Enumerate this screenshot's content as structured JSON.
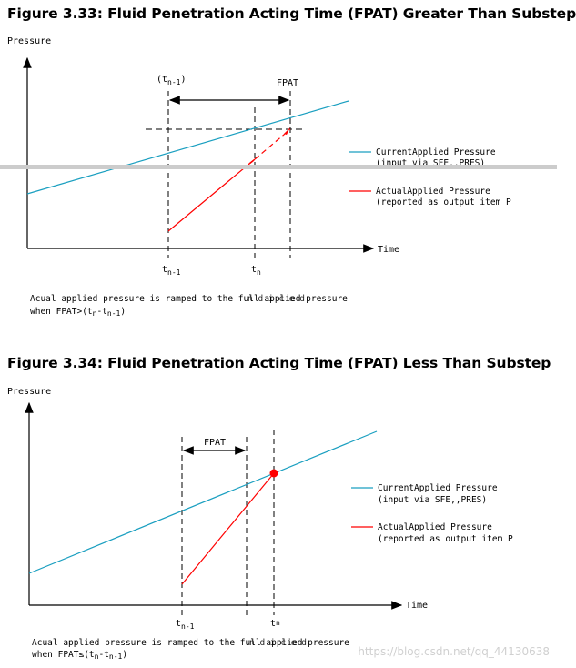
{
  "figure1": {
    "title": "Figure 3.33:  Fluid Penetration Acting Time (FPAT) Greater Than Substep",
    "y_axis_label": "Pressure",
    "x_axis_label": "Time",
    "top_tick_open": "(t",
    "top_tick_sub": "n-1",
    "top_tick_close": ")",
    "fpat_label": "FPAT",
    "bottom_tick1": "t",
    "bottom_tick1_sub": "n-1",
    "bottom_tick2": "t",
    "bottom_tick2_sub": "n",
    "legend": [
      {
        "line1": "CurrentApplied Pressure",
        "line2": "(input via SFE,,PRES)",
        "color": "#1a9fc0"
      },
      {
        "line1": "ActualApplied Pressure",
        "line2": "(reported as output item P",
        "color": "#ff0000"
      }
    ],
    "note_line1": "Acual applied pressure is ramped to the full applied pressure",
    "note_overlap": "n d i c e d",
    "note_line2_prefix": "when FPAT>(t",
    "note_line2_sub1": "n",
    "note_line2_mid": "-t",
    "note_line2_sub2": "n-1",
    "note_line2_suffix": ")"
  },
  "figure2": {
    "title": "Figure 3.34:  Fluid Penetration Acting Time (FPAT) Less Than Substep",
    "y_axis_label": "Pressure",
    "x_axis_label": "Time",
    "fpat_label": "FPAT",
    "bottom_tick1": "t",
    "bottom_tick1_sub": "n-1",
    "bottom_tick2": "t",
    "bottom_tick2_sub": "n",
    "legend": [
      {
        "line1": "CurrentApplied Pressure",
        "line2": "(input via SFE,,PRES)",
        "color": "#1a9fc0"
      },
      {
        "line1": "ActualApplied Pressure",
        "line2": "(reported as output item P",
        "color": "#ff0000"
      }
    ],
    "note_line1": "Acual applied pressure is ramped to the full applied pressure",
    "note_overlap": "n d i c e d",
    "note_line2_prefix": "when FPAT≤(t",
    "note_line2_sub1": "n",
    "note_line2_mid": "-t",
    "note_line2_sub2": "n-1",
    "note_line2_suffix": ")"
  },
  "watermark": "https://blog.csdn.net/qq_44130638",
  "colors": {
    "current": "#1a9fc0",
    "actual": "#ff0000",
    "divider": "#cccccc"
  }
}
